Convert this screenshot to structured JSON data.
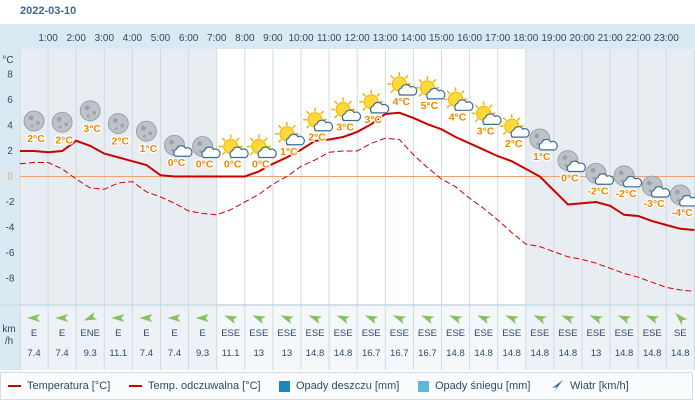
{
  "date": "2022-03-10",
  "units": {
    "temp": "°C",
    "wind_line1": "km",
    "wind_line2": "/h"
  },
  "colors": {
    "temperature": "#cc0000",
    "feels_like": "#cc0000",
    "rain": "#1a88b8",
    "snow": "#5ab8d8",
    "wind_arrow": "#88c060",
    "night": "#e8edf1",
    "day": "#ffffff",
    "label": "#ee8800",
    "zero_line": "#f0a070"
  },
  "legend": {
    "temperature": "Temperatura [°C]",
    "feels_like": "Temp. odczuwalna [°C]",
    "rain": "Opady deszczu [mm]",
    "snow": "Opady śniegu [mm]",
    "wind": "Wiatr [km/h]"
  },
  "chart_data": {
    "type": "line",
    "x": [
      "1:00",
      "2:00",
      "3:00",
      "4:00",
      "5:00",
      "6:00",
      "7:00",
      "8:00",
      "9:00",
      "10:00",
      "11:00",
      "12:00",
      "13:00",
      "14:00",
      "15:00",
      "16:00",
      "17:00",
      "18:00",
      "19:00",
      "20:00",
      "21:00",
      "22:00",
      "23:00"
    ],
    "ylim": [
      -10,
      10
    ],
    "yticks": [
      8,
      6,
      4,
      2,
      0,
      -2,
      -4,
      -6,
      -8
    ],
    "ylabel": "°C",
    "series": [
      {
        "name": "Temperatura [°C]",
        "style": "solid",
        "x": [
          0,
          0.5,
          1,
          1.5,
          2,
          2.5,
          3,
          3.5,
          4,
          4.5,
          5,
          5.5,
          6,
          6.5,
          7,
          7.5,
          8,
          8.5,
          9,
          9.5,
          10,
          10.5,
          11,
          11.5,
          12,
          12.5,
          13,
          13.5,
          14,
          14.5,
          15,
          15.5,
          16,
          16.5,
          17,
          17.5,
          18,
          18.5,
          19,
          19.5,
          20,
          20.5,
          21,
          21.5,
          22,
          22.5,
          23,
          23.5,
          24
        ],
        "values": [
          2,
          2,
          1.9,
          2,
          2.8,
          2.4,
          1.8,
          1.5,
          1.2,
          0.9,
          0.1,
          0,
          0,
          0,
          0,
          0,
          0,
          0.4,
          1,
          1.5,
          2.1,
          2.8,
          2.9,
          3.1,
          3.5,
          4.1,
          4.9,
          5,
          4.6,
          4.1,
          3.7,
          3.1,
          2.6,
          2.1,
          1.6,
          1.2,
          0.6,
          0,
          -1.1,
          -2.2,
          -2.1,
          -2,
          -2.3,
          -3,
          -3.1,
          -3.5,
          -3.8,
          -4.1,
          -4.2
        ]
      },
      {
        "name": "Temp. odczuwalna [°C]",
        "style": "dashed",
        "x": [
          0,
          0.5,
          1,
          1.5,
          2,
          2.5,
          3,
          3.5,
          4,
          4.5,
          5,
          5.5,
          6,
          6.5,
          7,
          7.5,
          8,
          8.5,
          9,
          9.5,
          10,
          10.5,
          11,
          11.5,
          12,
          12.5,
          13,
          13.5,
          14,
          14.5,
          15,
          15.5,
          16,
          16.5,
          17,
          17.5,
          18,
          18.5,
          19,
          19.5,
          20,
          20.5,
          21,
          21.5,
          22,
          22.5,
          23,
          23.5,
          24
        ],
        "values": [
          1,
          1.1,
          1.1,
          0.6,
          -0.2,
          -0.9,
          -1,
          -0.5,
          -0.4,
          -1.2,
          -1.6,
          -2.1,
          -2.7,
          -2.9,
          -3,
          -2.6,
          -2,
          -1.4,
          -0.6,
          0,
          0.8,
          1.3,
          1.9,
          2,
          2,
          2.6,
          3,
          2.9,
          1.7,
          0.7,
          -0.2,
          -0.8,
          -1.7,
          -2.5,
          -3.4,
          -4.4,
          -5.3,
          -5.5,
          -5.9,
          -6.3,
          -6.5,
          -6.8,
          -7.2,
          -7.6,
          -7.9,
          -8.3,
          -8.7,
          -8.9,
          -9
        ]
      }
    ],
    "hourly": [
      {
        "label": "2°C",
        "icon": "moon-cloudy",
        "wind_dir": "E",
        "wind": "7.4"
      },
      {
        "label": "2°C",
        "icon": "moon-cloudy",
        "wind_dir": "E",
        "wind": "7.4"
      },
      {
        "label": "3°C",
        "icon": "moon-cloudy",
        "wind_dir": "ENE",
        "wind": "9.3"
      },
      {
        "label": "2°C",
        "icon": "moon-cloudy",
        "wind_dir": "E",
        "wind": "11.1"
      },
      {
        "label": "1°C",
        "icon": "moon-cloudy",
        "wind_dir": "E",
        "wind": "7.4"
      },
      {
        "label": "0°C",
        "icon": "moon-cloud-rain",
        "wind_dir": "E",
        "wind": "7.4"
      },
      {
        "label": "0°C",
        "icon": "moon-cloud-rain",
        "wind_dir": "E",
        "wind": "9.3"
      },
      {
        "label": "0°C",
        "icon": "sun-cloud-rain",
        "wind_dir": "ESE",
        "wind": "11.1"
      },
      {
        "label": "0°C",
        "icon": "sun-cloud-rain",
        "wind_dir": "ESE",
        "wind": "13"
      },
      {
        "label": "1°C",
        "icon": "sun-cloud-rain",
        "wind_dir": "ESE",
        "wind": "13"
      },
      {
        "label": "2°C",
        "icon": "sun-cloud-rain",
        "wind_dir": "ESE",
        "wind": "14.8"
      },
      {
        "label": "3°C",
        "icon": "sun-cloud-rain",
        "wind_dir": "ESE",
        "wind": "14.8"
      },
      {
        "label": "3°C",
        "icon": "sun-cloud-rain",
        "wind_dir": "ESE",
        "wind": "16.7"
      },
      {
        "label": "4°C",
        "icon": "sun-cloud-rain",
        "wind_dir": "ESE",
        "wind": "16.7"
      },
      {
        "label": "5°C",
        "icon": "sun-cloud-rain",
        "wind_dir": "ESE",
        "wind": "16.7"
      },
      {
        "label": "4°C",
        "icon": "sun-cloud-rain",
        "wind_dir": "ESE",
        "wind": "14.8"
      },
      {
        "label": "3°C",
        "icon": "sun-cloud-rain",
        "wind_dir": "ESE",
        "wind": "14.8"
      },
      {
        "label": "2°C",
        "icon": "sun-cloud-rain",
        "wind_dir": "ESE",
        "wind": "14.8"
      },
      {
        "label": "1°C",
        "icon": "moon-cloud-rain",
        "wind_dir": "ESE",
        "wind": "14.8"
      },
      {
        "label": "0°C",
        "icon": "moon-cloud-rain",
        "wind_dir": "ESE",
        "wind": "14.8"
      },
      {
        "label": "-2°C",
        "icon": "moon-cloud-rain",
        "wind_dir": "ESE",
        "wind": "13"
      },
      {
        "label": "-2°C",
        "icon": "moon-cloud-rain",
        "wind_dir": "ESE",
        "wind": "14.8"
      },
      {
        "label": "-3°C",
        "icon": "moon-cloud-rain",
        "wind_dir": "ESE",
        "wind": "14.8"
      },
      {
        "label": "-4°C",
        "icon": "moon-cloud-rain",
        "wind_dir": "SE",
        "wind": "14.8"
      }
    ],
    "daylight_hours": [
      7,
      18
    ],
    "legend_position": "bottom"
  }
}
